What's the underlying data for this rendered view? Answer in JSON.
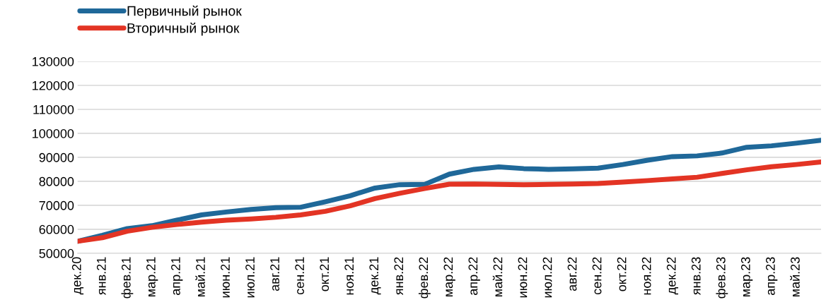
{
  "chart_data": {
    "type": "line",
    "categories": [
      "дек.20",
      "янв.21",
      "фев.21",
      "мар.21",
      "апр.21",
      "май.21",
      "июн.21",
      "июл.21",
      "авг.21",
      "сен.21",
      "окт.21",
      "ноя.21",
      "дек.21",
      "янв.22",
      "фев.22",
      "мар.22",
      "апр.22",
      "май.22",
      "июн.22",
      "июл.22",
      "авг.22",
      "сен.22",
      "окт.22",
      "ноя.22",
      "дек.22",
      "янв.23",
      "фев.23",
      "мар.23",
      "апр.23",
      "май.23",
      null
    ],
    "series": [
      {
        "name": "Первичный рынок",
        "color": "#1f6899",
        "values": [
          55000,
          57500,
          60300,
          61500,
          63800,
          66000,
          67200,
          68300,
          69000,
          69200,
          71500,
          74000,
          77200,
          78600,
          78700,
          83000,
          85000,
          86000,
          85300,
          85000,
          85200,
          85500,
          87000,
          88800,
          90300,
          90600,
          91800,
          94200,
          94800,
          95900,
          97100
        ]
      },
      {
        "name": "Вторичный рынок",
        "color": "#e33424",
        "values": [
          55000,
          56500,
          59200,
          60800,
          62000,
          63000,
          63800,
          64300,
          65000,
          66000,
          67500,
          69800,
          72800,
          75000,
          77000,
          78800,
          78900,
          78700,
          78600,
          78700,
          78900,
          79100,
          79700,
          80300,
          81000,
          81700,
          83300,
          84800,
          86100,
          87000,
          88100
        ]
      }
    ],
    "ylim": [
      50000,
      130000
    ],
    "yticks": [
      50000,
      60000,
      70000,
      80000,
      90000,
      100000,
      110000,
      120000,
      130000
    ],
    "grid": "y",
    "legend": "top left",
    "line_style": "solid",
    "marker": "none"
  }
}
